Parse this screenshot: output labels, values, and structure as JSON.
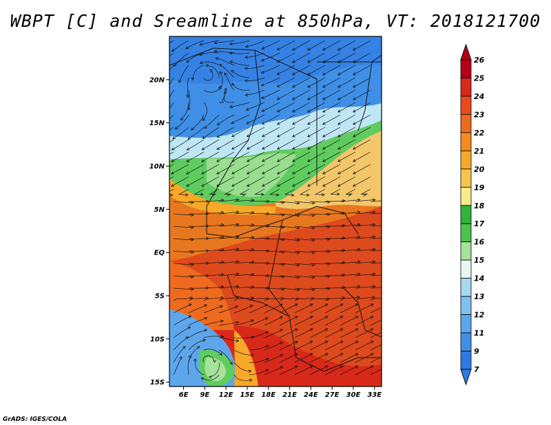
{
  "title": "WBPT [C] and Sreamline at 850hPa, VT: 2018121700",
  "credit": "GrADS: IGES/COLA",
  "map": {
    "lat_range": [
      -15.5,
      25
    ],
    "lon_range": [
      4,
      34
    ],
    "y_ticks": [
      "20N",
      "15N",
      "10N",
      "5N",
      "EQ",
      "5S",
      "10S",
      "15S"
    ],
    "x_ticks": [
      "6E",
      "9E",
      "12E",
      "15E",
      "18E",
      "21E",
      "24E",
      "27E",
      "30E",
      "33E"
    ],
    "fill_bands_by_latitude": [
      {
        "lat_from": 25,
        "lat_to": 13,
        "color": "#3f8fe6"
      },
      {
        "lat_from": 13,
        "lat_to": 11.5,
        "color": "#bfe6f5"
      },
      {
        "lat_from": 11.5,
        "lat_to": 8,
        "color": "#5fcc5f"
      },
      {
        "lat_from": 8,
        "lat_to": 5.5,
        "color": "#f2c76a"
      },
      {
        "lat_from": 5.5,
        "lat_to": 0,
        "color": "#e8781f"
      },
      {
        "lat_from": 0,
        "lat_to": -15.5,
        "color": "#dd4a1d"
      }
    ]
  },
  "colorbar": {
    "labels": [
      "26",
      "25",
      "24",
      "23",
      "22",
      "21",
      "20",
      "19",
      "18",
      "17",
      "16",
      "15",
      "14",
      "13",
      "12",
      "11",
      "9",
      "7"
    ],
    "colors": [
      "#b40016",
      "#d8281a",
      "#e84a1c",
      "#ee6a1f",
      "#f58a1f",
      "#f7a828",
      "#f7c54d",
      "#faea8c",
      "#2fb43a",
      "#4dc34d",
      "#a6e29a",
      "#e8f8f0",
      "#a7d9f3",
      "#7fc0ee",
      "#5ea6eb",
      "#3f8fe6",
      "#2f7ae2"
    ]
  }
}
